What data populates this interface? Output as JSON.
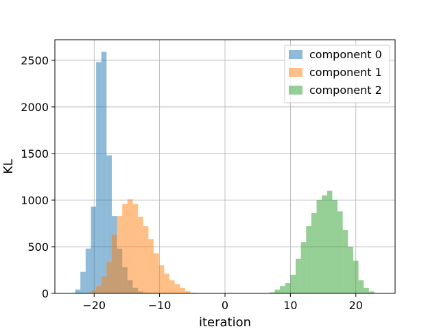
{
  "chart_data": {
    "type": "bar",
    "title": "",
    "xlabel": "iteration",
    "ylabel": "KL",
    "xlim": [
      -26,
      26
    ],
    "ylim": [
      0,
      2720
    ],
    "xticks": [
      -20,
      -10,
      0,
      10,
      20
    ],
    "xtick_labels": [
      "−20",
      "−10",
      "0",
      "10",
      "20"
    ],
    "yticks": [
      0,
      500,
      1000,
      1500,
      2000,
      2500
    ],
    "ytick_labels": [
      "0",
      "500",
      "1000",
      "1500",
      "2000",
      "2500"
    ],
    "grid": true,
    "legend_position": "top-right",
    "bin_width": 0.8,
    "series": [
      {
        "name": "component 0",
        "color": "#1f77b4",
        "bins": [
          [
            -22.9,
            40
          ],
          [
            -22.1,
            230
          ],
          [
            -21.3,
            480
          ],
          [
            -20.5,
            930
          ],
          [
            -19.7,
            2480
          ],
          [
            -18.9,
            2590
          ],
          [
            -18.1,
            1480
          ],
          [
            -17.3,
            830
          ],
          [
            -16.5,
            480
          ],
          [
            -15.7,
            280
          ],
          [
            -14.9,
            140
          ],
          [
            -14.1,
            60
          ],
          [
            -13.3,
            20
          ],
          [
            -12.5,
            8
          ]
        ]
      },
      {
        "name": "component 1",
        "color": "#ff7f0e",
        "bins": [
          [
            -20.5,
            30
          ],
          [
            -19.7,
            80
          ],
          [
            -18.9,
            180
          ],
          [
            -18.1,
            340
          ],
          [
            -17.3,
            630
          ],
          [
            -16.5,
            830
          ],
          [
            -15.7,
            960
          ],
          [
            -14.9,
            1010
          ],
          [
            -14.1,
            960
          ],
          [
            -13.3,
            820
          ],
          [
            -12.5,
            720
          ],
          [
            -11.7,
            580
          ],
          [
            -10.9,
            430
          ],
          [
            -10.1,
            300
          ],
          [
            -9.3,
            210
          ],
          [
            -8.5,
            140
          ],
          [
            -7.7,
            100
          ],
          [
            -6.9,
            60
          ],
          [
            -6.1,
            25
          ],
          [
            -5.3,
            8
          ]
        ]
      },
      {
        "name": "component 2",
        "color": "#2ca02c",
        "bins": [
          [
            6.8,
            10
          ],
          [
            7.6,
            40
          ],
          [
            8.4,
            80
          ],
          [
            9.2,
            110
          ],
          [
            10.0,
            200
          ],
          [
            10.8,
            370
          ],
          [
            11.6,
            550
          ],
          [
            12.4,
            720
          ],
          [
            13.2,
            860
          ],
          [
            14.0,
            1000
          ],
          [
            14.8,
            1050
          ],
          [
            15.6,
            1100
          ],
          [
            16.4,
            1000
          ],
          [
            17.2,
            880
          ],
          [
            18.0,
            680
          ],
          [
            18.8,
            500
          ],
          [
            19.6,
            350
          ],
          [
            20.4,
            140
          ],
          [
            21.2,
            60
          ],
          [
            22.0,
            20
          ]
        ]
      }
    ]
  }
}
